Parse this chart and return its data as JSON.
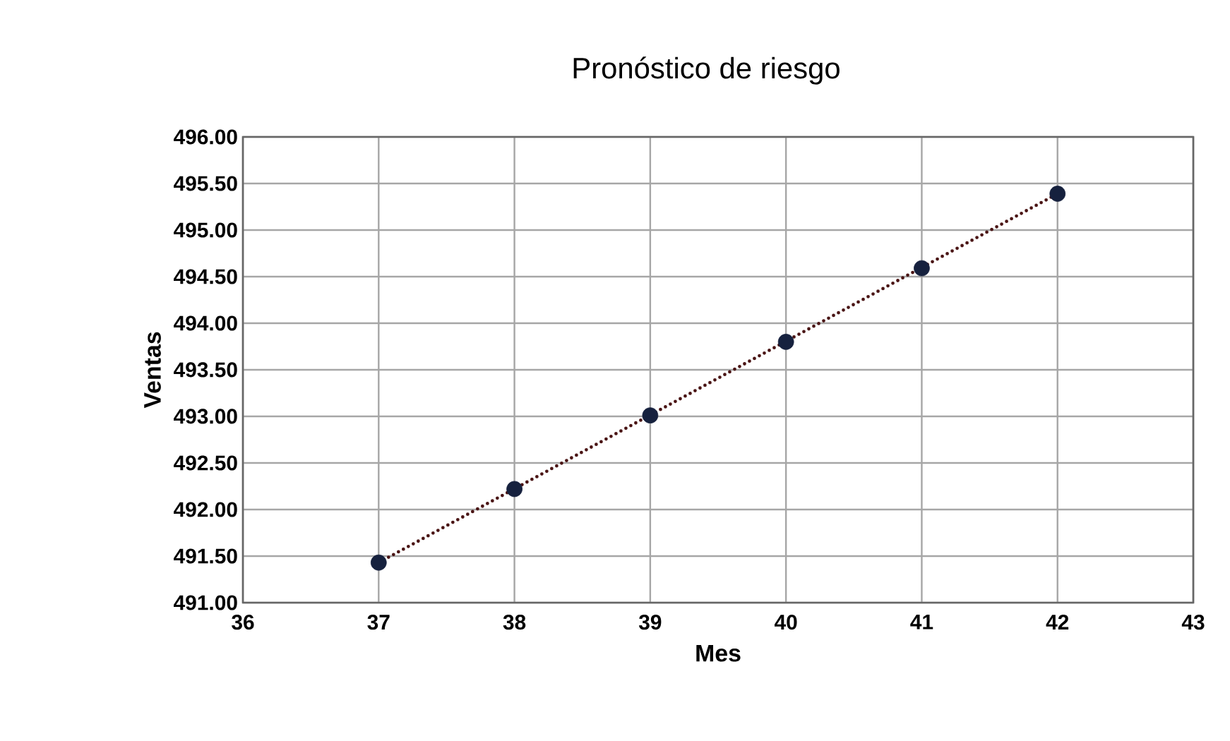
{
  "chart_data": {
    "type": "scatter",
    "title": "Pronóstico de riesgo",
    "xlabel": "Mes",
    "ylabel": "Ventas",
    "xlim": [
      36,
      43
    ],
    "xticks": [
      36,
      37,
      38,
      39,
      40,
      41,
      42,
      43
    ],
    "ylim": [
      491,
      496
    ],
    "yticks": [
      {
        "value": 491,
        "label": "491.00"
      },
      {
        "value": 491.5,
        "label": "491.50"
      },
      {
        "value": 492,
        "label": "492.00"
      },
      {
        "value": 492.5,
        "label": "492.50"
      },
      {
        "value": 493,
        "label": "493.00"
      },
      {
        "value": 493.5,
        "label": "493.50"
      },
      {
        "value": 494,
        "label": "494.00"
      },
      {
        "value": 494.5,
        "label": "494.50"
      },
      {
        "value": 495,
        "label": "495.00"
      },
      {
        "value": 495.5,
        "label": "495.50"
      },
      {
        "value": 496,
        "label": "496.00"
      }
    ],
    "grid": true,
    "series": [
      {
        "type": "line",
        "color": "#4a1515",
        "line_style": "dotted",
        "marker": "none",
        "x": [
          37,
          42
        ],
        "values": [
          491.43,
          495.39
        ]
      },
      {
        "color": "#16213e",
        "marker": "circle",
        "x": [
          37,
          38,
          39,
          40,
          41,
          42
        ],
        "values": [
          491.43,
          492.22,
          493.01,
          493.8,
          494.59,
          495.39
        ]
      }
    ]
  }
}
